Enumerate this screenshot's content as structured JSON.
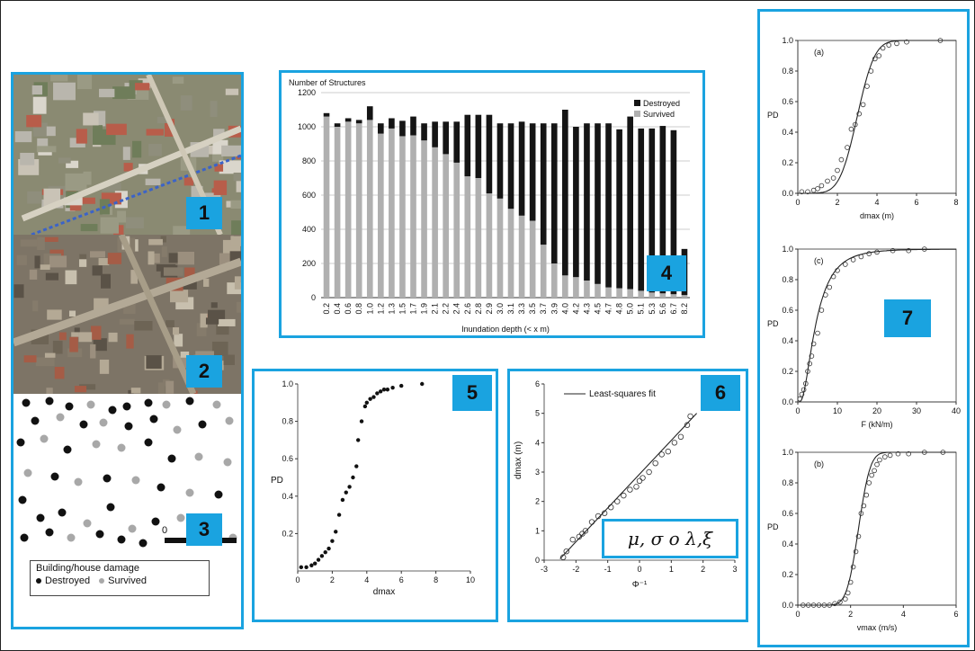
{
  "badges": [
    "1",
    "2",
    "3",
    "4",
    "5",
    "6",
    "7"
  ],
  "damage_map": {
    "legend_title": "Building/house damage",
    "destroyed_label": "Destroyed",
    "survived_label": "Survived",
    "scale_zero": "0"
  },
  "colors": {
    "accent": "#1aa3e0",
    "destroyed": "#111111",
    "survived": "#a8a8a8"
  },
  "formula_text": "μ, σ o λ,ξ",
  "chart_data": [
    {
      "type": "bar",
      "ylabel": "Number of Structures",
      "xlabel": "Inundation depth  (< x m)",
      "ylim": [
        0,
        1200
      ],
      "yticks": [
        0,
        200,
        400,
        600,
        800,
        1000,
        1200
      ],
      "grid": true,
      "legend": "top-right",
      "categories": [
        "0.2",
        "0.4",
        "0.6",
        "0.8",
        "1.0",
        "1.2",
        "1.3",
        "1.5",
        "1.7",
        "1.9",
        "2.1",
        "2.2",
        "2.4",
        "2.6",
        "2.8",
        "2.9",
        "3.0",
        "3.1",
        "3.3",
        "3.5",
        "3.7",
        "3.9",
        "4.0",
        "4.2",
        "4.3",
        "4.5",
        "4.7",
        "4.8",
        "5.0",
        "5.1",
        "5.3",
        "5.6",
        "6.7",
        "8.2"
      ],
      "series": [
        {
          "name": "Survived",
          "values": [
            1060,
            1000,
            1030,
            1020,
            1040,
            960,
            990,
            945,
            950,
            920,
            880,
            840,
            790,
            710,
            700,
            610,
            580,
            520,
            480,
            450,
            310,
            200,
            130,
            120,
            100,
            80,
            60,
            55,
            50,
            40,
            30,
            25,
            20,
            15
          ]
        },
        {
          "name": "Destroyed",
          "values": [
            20,
            20,
            20,
            20,
            80,
            60,
            60,
            90,
            110,
            100,
            150,
            190,
            240,
            360,
            370,
            460,
            440,
            500,
            550,
            570,
            710,
            820,
            970,
            880,
            920,
            940,
            960,
            930,
            1010,
            950,
            960,
            980,
            960,
            270
          ]
        }
      ]
    },
    {
      "type": "scatter",
      "xlabel": "dmax",
      "ylabel": "PD",
      "xlim": [
        0,
        10
      ],
      "ylim": [
        0,
        1
      ],
      "xticks": [
        0,
        2,
        4,
        6,
        8,
        10
      ],
      "yticks": [
        0.2,
        0.4,
        0.6,
        0.8,
        1.0
      ],
      "x": [
        0.2,
        0.5,
        0.8,
        1.0,
        1.2,
        1.4,
        1.6,
        1.8,
        2.0,
        2.2,
        2.4,
        2.6,
        2.8,
        3.0,
        3.2,
        3.4,
        3.5,
        3.7,
        3.9,
        4.0,
        4.2,
        4.4,
        4.6,
        4.8,
        5.0,
        5.2,
        5.5,
        6.0,
        7.2
      ],
      "y": [
        0.02,
        0.02,
        0.03,
        0.04,
        0.06,
        0.08,
        0.1,
        0.12,
        0.16,
        0.21,
        0.3,
        0.38,
        0.42,
        0.45,
        0.5,
        0.56,
        0.7,
        0.8,
        0.88,
        0.9,
        0.92,
        0.93,
        0.95,
        0.96,
        0.97,
        0.97,
        0.98,
        0.99,
        1.0
      ]
    },
    {
      "type": "scatter",
      "xlabel": "Φ⁻¹",
      "ylabel": "dmax (m)",
      "legend_label": "Least-squares fit",
      "xlim": [
        -3,
        3
      ],
      "ylim": [
        0,
        6
      ],
      "xticks": [
        -3,
        -2,
        -1,
        0,
        1,
        2,
        3
      ],
      "yticks": [
        0,
        1,
        2,
        3,
        4,
        5,
        6
      ],
      "x": [
        -2.3,
        -2.1,
        -1.9,
        -1.7,
        -1.5,
        -1.3,
        -1.1,
        -0.9,
        -0.7,
        -0.5,
        -0.3,
        -0.1,
        0.1,
        0.3,
        0.5,
        0.7,
        0.9,
        1.1,
        1.3,
        1.5,
        1.6,
        -2.4,
        -1.8,
        0.0
      ],
      "y": [
        0.3,
        0.7,
        0.8,
        1.0,
        1.3,
        1.5,
        1.6,
        1.8,
        2.0,
        2.2,
        2.4,
        2.5,
        2.8,
        3.0,
        3.3,
        3.6,
        3.7,
        4.0,
        4.2,
        4.6,
        4.9,
        0.1,
        0.9,
        2.7
      ],
      "fit": {
        "x": [
          -2.5,
          1.8
        ],
        "y": [
          0.05,
          5.0
        ]
      }
    },
    {
      "type": "line",
      "panel_label": "(a)",
      "xlabel": "dmax (m)",
      "ylabel": "PD",
      "xlim": [
        0,
        8
      ],
      "ylim": [
        0,
        1
      ],
      "xticks": [
        0,
        2,
        4,
        6,
        8
      ],
      "yticks": [
        0.0,
        0.2,
        0.4,
        0.6,
        0.8,
        1.0
      ],
      "curve": {
        "mu": 3.0,
        "sigma": 0.7,
        "lognormal": false
      },
      "points_x": [
        0.2,
        0.5,
        0.8,
        1.0,
        1.2,
        1.5,
        1.8,
        2.0,
        2.2,
        2.5,
        2.7,
        2.9,
        3.1,
        3.3,
        3.5,
        3.7,
        3.9,
        4.1,
        4.3,
        4.6,
        5.0,
        5.5,
        7.2
      ],
      "points_y": [
        0.01,
        0.01,
        0.02,
        0.03,
        0.05,
        0.08,
        0.1,
        0.15,
        0.22,
        0.3,
        0.42,
        0.45,
        0.52,
        0.58,
        0.7,
        0.8,
        0.88,
        0.9,
        0.95,
        0.97,
        0.98,
        0.99,
        1.0
      ]
    },
    {
      "type": "line",
      "panel_label": "(c)",
      "xlabel": "F (kN/m)",
      "ylabel": "PD",
      "xlim": [
        0,
        40
      ],
      "ylim": [
        0,
        1
      ],
      "xticks": [
        0,
        10,
        20,
        30,
        40
      ],
      "yticks": [
        0.0,
        0.2,
        0.4,
        0.6,
        0.8,
        1.0
      ],
      "curve": {
        "mu": 1.5,
        "sigma": 0.7,
        "lognormal": true
      },
      "points_x": [
        0.5,
        1,
        1.5,
        2,
        2.5,
        3,
        3.5,
        4,
        5,
        6,
        7,
        8,
        9,
        10,
        12,
        14,
        16,
        18,
        20,
        24,
        28,
        32
      ],
      "points_y": [
        0.02,
        0.05,
        0.08,
        0.12,
        0.2,
        0.25,
        0.3,
        0.38,
        0.45,
        0.6,
        0.7,
        0.75,
        0.82,
        0.86,
        0.9,
        0.93,
        0.95,
        0.97,
        0.98,
        0.99,
        0.99,
        1.0
      ]
    },
    {
      "type": "line",
      "panel_label": "(b)",
      "xlabel": "vmax (m/s)",
      "ylabel": "PD",
      "xlim": [
        0,
        6
      ],
      "ylim": [
        0,
        1
      ],
      "xticks": [
        0,
        2,
        4,
        6
      ],
      "yticks": [
        0.0,
        0.2,
        0.4,
        0.6,
        0.8,
        1.0
      ],
      "curve": {
        "mu": 2.3,
        "sigma": 0.35,
        "lognormal": false
      },
      "points_x": [
        0.2,
        0.4,
        0.6,
        0.8,
        1.0,
        1.2,
        1.4,
        1.6,
        1.8,
        1.9,
        2.0,
        2.1,
        2.2,
        2.3,
        2.4,
        2.5,
        2.6,
        2.7,
        2.8,
        2.9,
        3.0,
        3.1,
        3.3,
        3.5,
        3.8,
        4.2,
        4.8,
        5.5
      ],
      "points_y": [
        0.0,
        0.0,
        0.0,
        0.0,
        0.0,
        0.0,
        0.01,
        0.02,
        0.04,
        0.08,
        0.15,
        0.25,
        0.35,
        0.45,
        0.6,
        0.65,
        0.72,
        0.8,
        0.85,
        0.88,
        0.92,
        0.95,
        0.97,
        0.98,
        0.99,
        0.99,
        1.0,
        1.0
      ]
    }
  ]
}
